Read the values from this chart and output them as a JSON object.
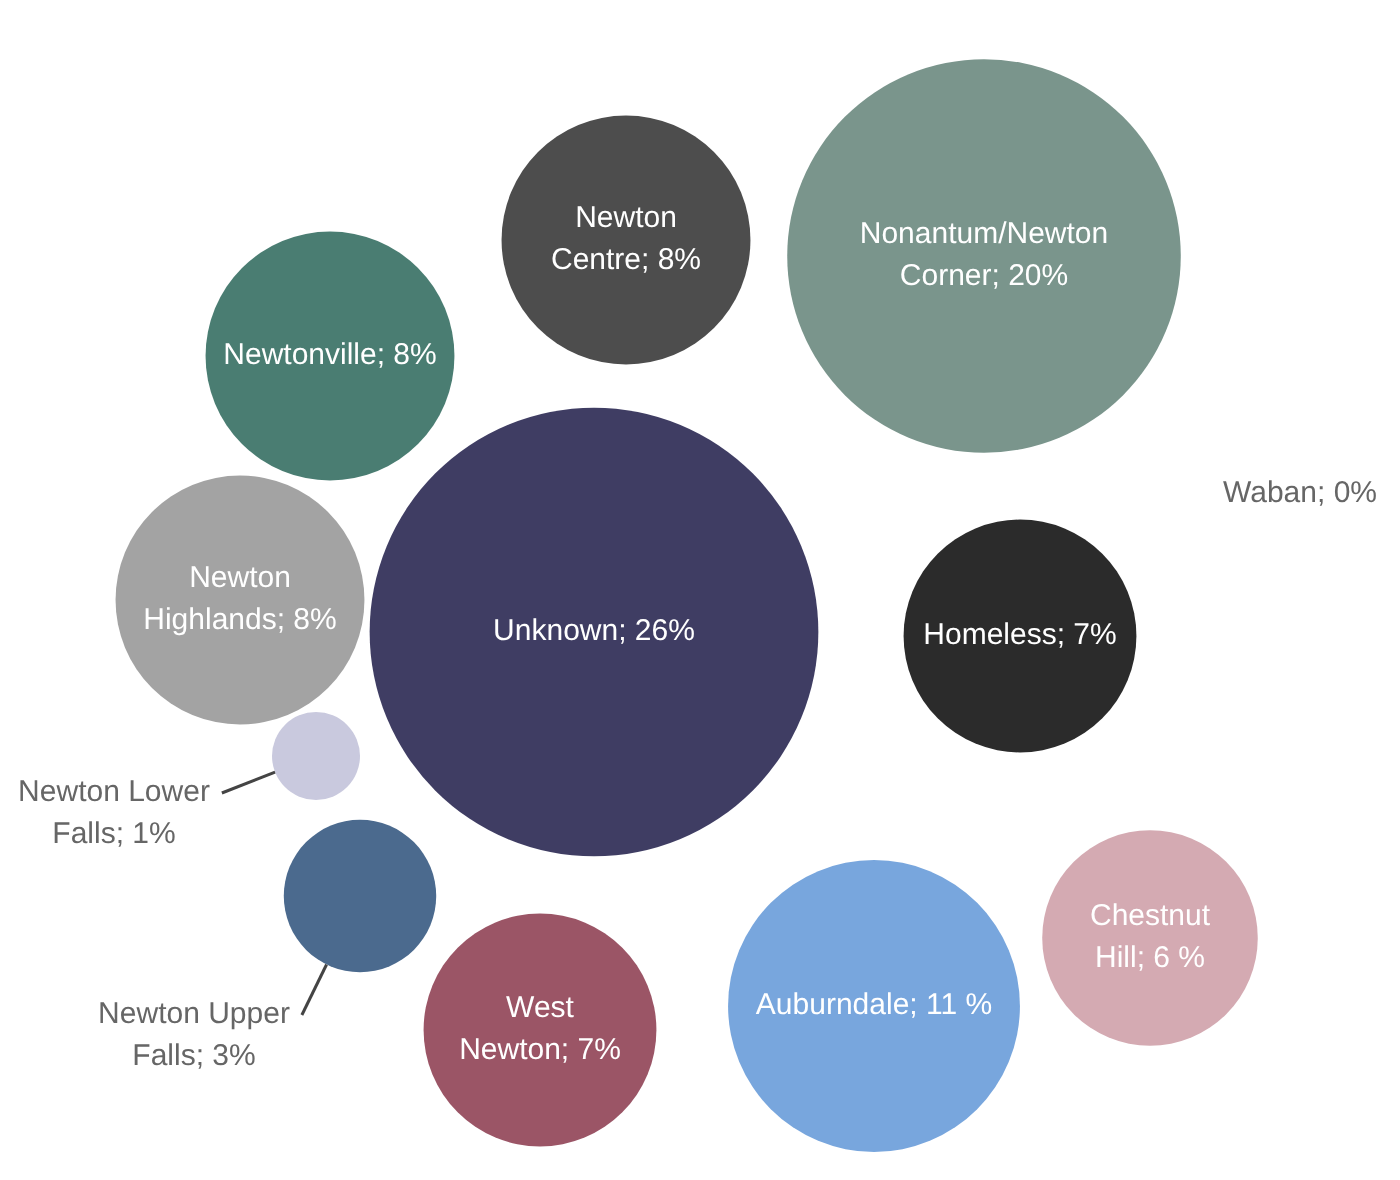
{
  "chart_data": {
    "type": "other",
    "categories": [
      "Newton Centre",
      "Nonantum/Newton Corner",
      "Newtonville",
      "Newton Highlands",
      "Unknown",
      "Homeless",
      "Waban",
      "Newton Lower Falls",
      "Newton Upper Falls",
      "Chestnut Hill",
      "West Newton",
      "Auburndale"
    ],
    "values": [
      8,
      20,
      8,
      8,
      26,
      7,
      0,
      1,
      3,
      6,
      7,
      11
    ],
    "value_labels": [
      "; 8%",
      "; 20%",
      "; 8%",
      "; 8%",
      "; 26%",
      "; 7%",
      "; 0%",
      "; 1%",
      "; 3%",
      "; 6 %",
      "; 7%",
      "; 11 %"
    ],
    "colors": [
      "#4d4d4d",
      "#7a958c",
      "#4a7d72",
      "#a3a3a3",
      "#3f3d63",
      "#2b2b2b",
      "#c9c9d9",
      "#c9c9de",
      "#4b6a8e",
      "#d4aab2",
      "#9b5566",
      "#78a6dd"
    ]
  }
}
